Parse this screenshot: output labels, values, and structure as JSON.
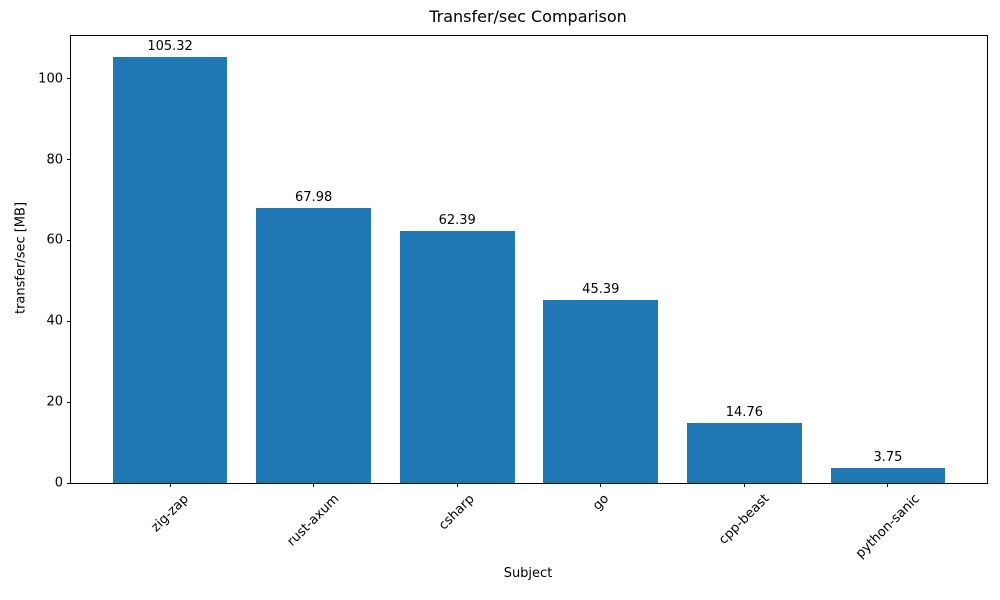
{
  "figure": {
    "background": "#ffffff"
  },
  "chart_data": {
    "type": "bar",
    "title": "Transfer/sec Comparison",
    "xlabel": "Subject",
    "ylabel": "transfer/sec [MB]",
    "categories": [
      "zig-zap",
      "rust-axum",
      "csharp",
      "go",
      "cpp-beast",
      "python-sanic"
    ],
    "values": [
      105.32,
      67.98,
      62.39,
      45.39,
      14.76,
      3.75
    ],
    "bar_labels": [
      "105.32",
      "67.98",
      "62.39",
      "45.39",
      "14.76",
      "3.75"
    ],
    "yticks": [
      0,
      20,
      40,
      60,
      80,
      100
    ],
    "ylim": [
      0,
      110.59
    ],
    "xtick_rotation_deg": 45,
    "bar_color": "#1f77b4",
    "grid": false,
    "legend": null
  }
}
